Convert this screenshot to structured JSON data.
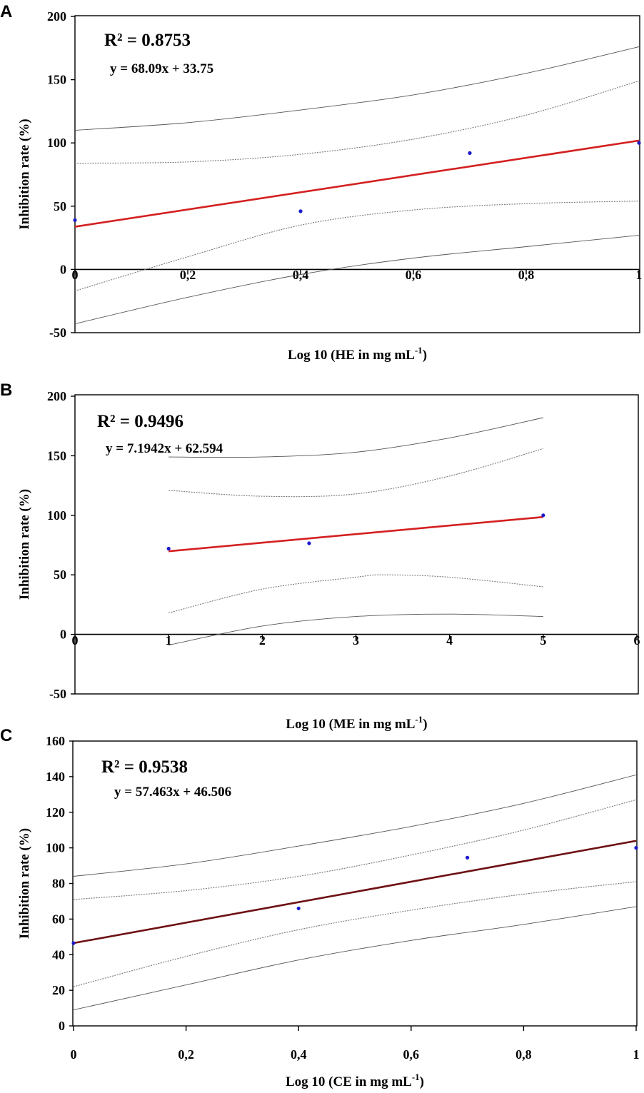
{
  "chart_data": [
    {
      "panel": "A",
      "type": "scatter",
      "r2_label": "R² = 0.8753",
      "equation": "y = 68.09x + 33.75",
      "xlabel": "Log 10 (HE in mg mL",
      "xlabel_sup": "-1",
      "xlabel_end": ")",
      "ylabel": "Inhibition rate (%)",
      "xlim": [
        0,
        1
      ],
      "ylim": [
        -50,
        200
      ],
      "x_ticks": [
        0,
        0.2,
        0.4,
        0.6,
        0.8,
        1
      ],
      "x_tick_labels": [
        "0",
        "0,2",
        "0,4",
        "0,6",
        "0,8",
        "1"
      ],
      "y_ticks": [
        -50,
        0,
        50,
        100,
        150,
        200
      ],
      "y_tick_labels": [
        "-50",
        "0",
        "50",
        "100",
        "150",
        "200"
      ],
      "points": {
        "x": [
          0,
          0.4,
          0.7,
          1
        ],
        "y": [
          39,
          46,
          92,
          100
        ]
      },
      "fit": {
        "slope": 68.09,
        "intercept": 33.75,
        "x_range": [
          0,
          1
        ],
        "color": "#d42020"
      },
      "bands": [
        {
          "style": "dotted",
          "x": [
            0,
            0.2,
            0.4,
            0.6,
            0.8,
            1
          ],
          "y": [
            84,
            85,
            91,
            103,
            122,
            149
          ]
        },
        {
          "style": "dotted",
          "x": [
            0,
            0.2,
            0.4,
            0.6,
            0.8,
            1
          ],
          "y": [
            -17,
            10,
            35,
            47,
            52,
            54
          ]
        },
        {
          "style": "solid",
          "x": [
            0,
            0.2,
            0.4,
            0.6,
            0.8,
            1
          ],
          "y": [
            110,
            116,
            126,
            138,
            155,
            176
          ]
        },
        {
          "style": "solid",
          "x": [
            0,
            0.2,
            0.4,
            0.6,
            0.8,
            1
          ],
          "y": [
            -43,
            -22,
            -4,
            9,
            18,
            27
          ]
        }
      ]
    },
    {
      "panel": "B",
      "type": "scatter",
      "r2_label": "R² = 0.9496",
      "equation": "y = 7.1942x + 62.594",
      "xlabel": "Log 10 (ME in mg mL",
      "xlabel_sup": "-1",
      "xlabel_end": ")",
      "ylabel": "Inhibition rate (%)",
      "xlim": [
        0,
        6
      ],
      "ylim": [
        -50,
        200
      ],
      "x_ticks": [
        0,
        1,
        2,
        3,
        4,
        5,
        6
      ],
      "x_tick_labels": [
        "0",
        "1",
        "2",
        "3",
        "4",
        "5",
        "6"
      ],
      "y_ticks": [
        -50,
        0,
        50,
        100,
        150,
        200
      ],
      "y_tick_labels": [
        "-50",
        "0",
        "50",
        "100",
        "150",
        "200"
      ],
      "points": {
        "x": [
          1,
          2.5,
          5
        ],
        "y": [
          72,
          76.5,
          100
        ]
      },
      "fit": {
        "slope": 7.1942,
        "intercept": 62.594,
        "x_range": [
          1,
          5
        ],
        "color": "#d42020"
      },
      "bands": [
        {
          "style": "dotted",
          "x": [
            1,
            2,
            3,
            4,
            5
          ],
          "y": [
            121,
            116,
            118,
            133,
            156
          ]
        },
        {
          "style": "dotted",
          "x": [
            1,
            2,
            3,
            3.3,
            4,
            5
          ],
          "y": [
            18,
            38,
            48,
            50,
            48,
            40
          ]
        },
        {
          "style": "solid",
          "x": [
            1,
            2,
            3,
            4,
            5
          ],
          "y": [
            149,
            149,
            153,
            165,
            182
          ]
        },
        {
          "style": "solid",
          "x": [
            1,
            2,
            3,
            4,
            5
          ],
          "y": [
            -9,
            7,
            15,
            17,
            15
          ]
        }
      ]
    },
    {
      "panel": "C",
      "type": "scatter",
      "r2_label": "R² = 0.9538",
      "equation": "y = 57.463x + 46.506",
      "xlabel": "Log 10 (CE in mg mL",
      "xlabel_sup": "-1",
      "xlabel_end": ")",
      "ylabel": "Inhibition rate (%)",
      "xlim": [
        0,
        1
      ],
      "ylim": [
        0,
        160
      ],
      "x_ticks": [
        0,
        0.2,
        0.4,
        0.6,
        0.8,
        1
      ],
      "x_tick_labels": [
        "0",
        "0,2",
        "0,4",
        "0,6",
        "0,8",
        "1"
      ],
      "y_ticks": [
        0,
        20,
        40,
        60,
        80,
        100,
        120,
        140,
        160
      ],
      "y_tick_labels": [
        "0",
        "20",
        "40",
        "60",
        "80",
        "100",
        "120",
        "140",
        "160"
      ],
      "points": {
        "x": [
          0,
          0.4,
          0.7,
          1
        ],
        "y": [
          46.5,
          66,
          94.5,
          100
        ]
      },
      "fit": {
        "slope": 57.463,
        "intercept": 46.506,
        "x_range": [
          0,
          1
        ],
        "color": "#6e1014"
      },
      "bands": [
        {
          "style": "dotted",
          "x": [
            0,
            0.2,
            0.4,
            0.6,
            0.8,
            1
          ],
          "y": [
            71,
            76,
            84,
            96,
            110,
            127
          ]
        },
        {
          "style": "dotted",
          "x": [
            0,
            0.2,
            0.4,
            0.6,
            0.8,
            1
          ],
          "y": [
            22,
            39,
            54,
            65,
            74,
            81
          ]
        },
        {
          "style": "solid",
          "x": [
            0,
            0.2,
            0.4,
            0.6,
            0.8,
            1
          ],
          "y": [
            84,
            91,
            101,
            112,
            125,
            141
          ]
        },
        {
          "style": "solid",
          "x": [
            0,
            0.2,
            0.4,
            0.6,
            0.8,
            1
          ],
          "y": [
            9,
            23,
            37,
            48,
            57,
            67
          ]
        }
      ]
    }
  ]
}
